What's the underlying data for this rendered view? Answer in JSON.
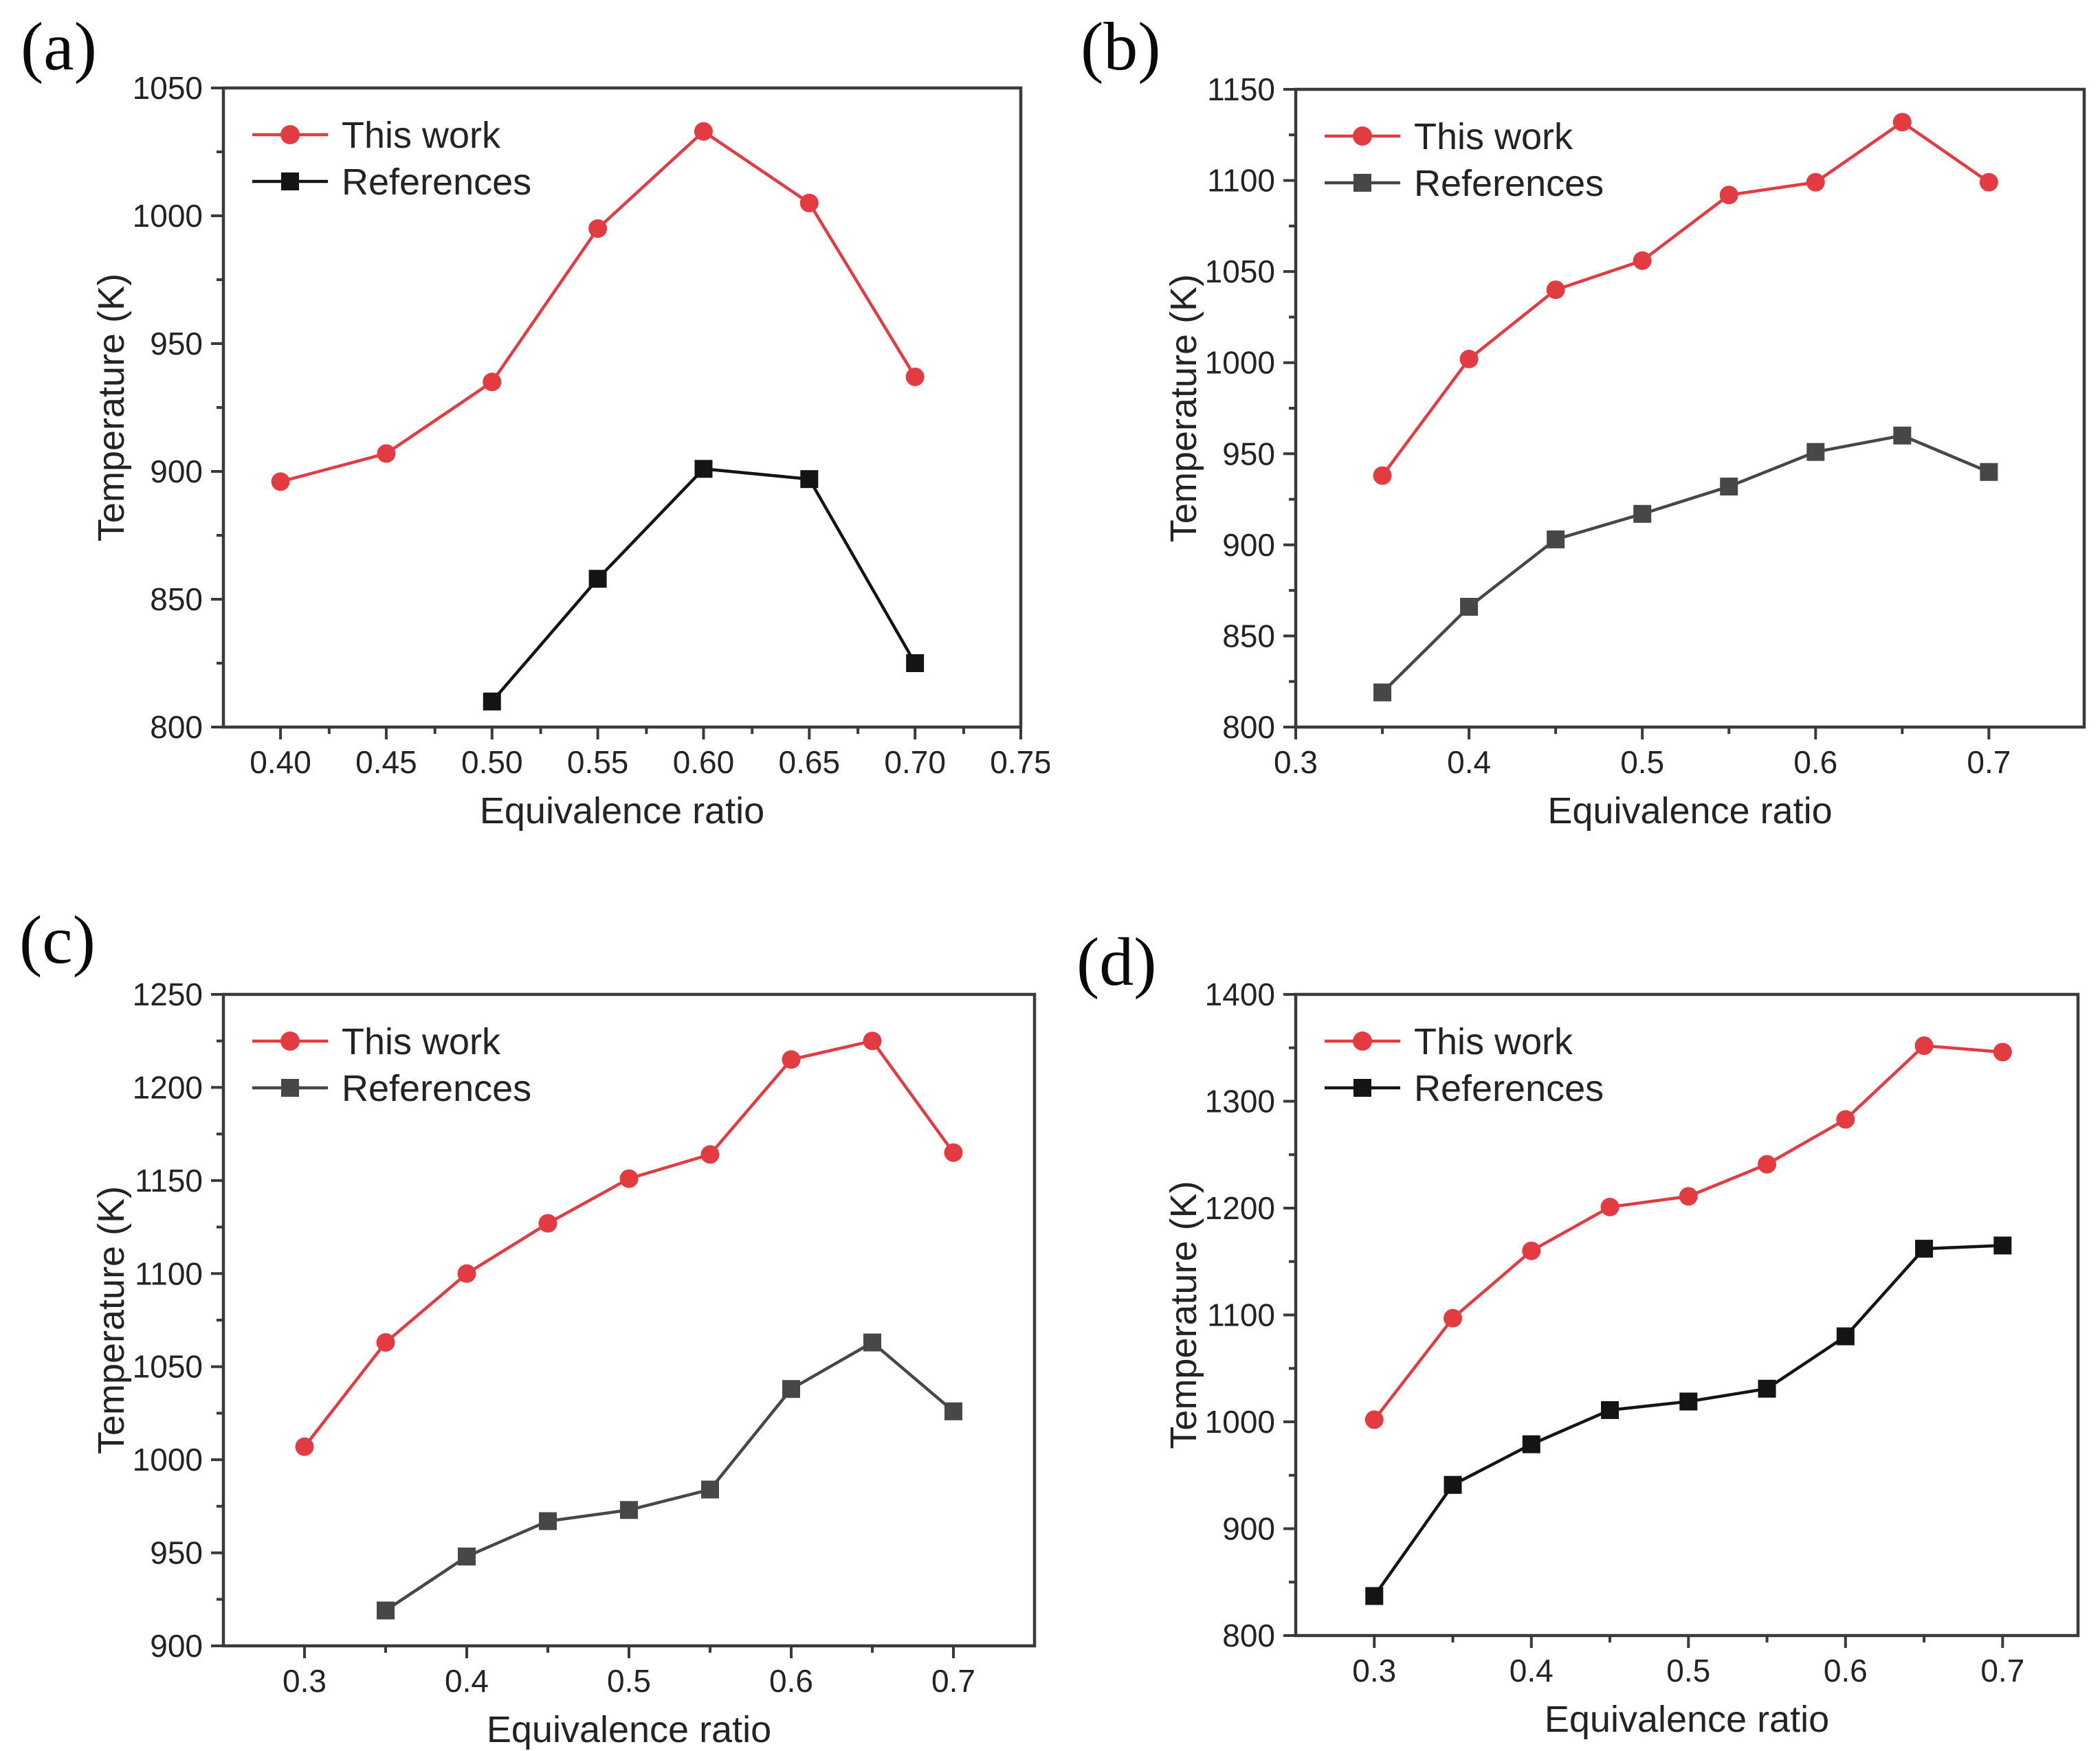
{
  "figure": {
    "background": "#ffffff",
    "text_color": "#232323",
    "axis_color": "#3a3a3a",
    "accent_red": "#e23b41",
    "series_black": "#141414",
    "series_gray": "#474747"
  },
  "chart_data": [
    {
      "panel_label": "(a)",
      "type": "line",
      "title": "",
      "xlabel": "Equivalence ratio",
      "ylabel": "Temperature (K)",
      "xlim": [
        0.373,
        0.75
      ],
      "ylim": [
        800,
        1050
      ],
      "x_ticks": {
        "values": [
          0.4,
          0.45,
          0.5,
          0.55,
          0.6,
          0.65,
          0.7,
          0.75
        ],
        "labels": [
          "0.40",
          "0.45",
          "0.50",
          "0.55",
          "0.60",
          "0.65",
          "0.70",
          "0.75"
        ]
      },
      "y_ticks": {
        "values": [
          800,
          850,
          900,
          950,
          1000,
          1050
        ],
        "labels": [
          "800",
          "850",
          "900",
          "950",
          "1000",
          "1050"
        ]
      },
      "x_minor_step": 0.025,
      "y_minor_step": 25,
      "grid": false,
      "legend_position": "top-left",
      "series": [
        {
          "name": "This work",
          "marker": "circle",
          "color": "#e23b41",
          "x": [
            0.4,
            0.45,
            0.5,
            0.55,
            0.6,
            0.65,
            0.7
          ],
          "y": [
            896,
            907,
            935,
            995,
            1033,
            1005,
            937
          ]
        },
        {
          "name": "References",
          "marker": "square",
          "color": "#141414",
          "x": [
            0.5,
            0.55,
            0.6,
            0.65,
            0.7
          ],
          "y": [
            810,
            858,
            901,
            897,
            825
          ]
        }
      ]
    },
    {
      "panel_label": "(b)",
      "type": "line",
      "title": "",
      "xlabel": "Equivalence ratio",
      "ylabel": "Temperature (K)",
      "xlim": [
        0.3,
        0.755
      ],
      "ylim": [
        800,
        1150
      ],
      "x_ticks": {
        "values": [
          0.3,
          0.4,
          0.5,
          0.6,
          0.7
        ],
        "labels": [
          "0.3",
          "0.4",
          "0.5",
          "0.6",
          "0.7"
        ]
      },
      "y_ticks": {
        "values": [
          800,
          850,
          900,
          950,
          1000,
          1050,
          1100,
          1150
        ],
        "labels": [
          "800",
          "850",
          "900",
          "950",
          "1000",
          "1050",
          "1100",
          "1150"
        ]
      },
      "x_minor_step": 0.05,
      "y_minor_step": 25,
      "grid": false,
      "legend_position": "top-left",
      "series": [
        {
          "name": "This work",
          "marker": "circle",
          "color": "#e23b41",
          "x": [
            0.35,
            0.4,
            0.45,
            0.5,
            0.55,
            0.6,
            0.65,
            0.7
          ],
          "y": [
            938,
            1002,
            1040,
            1056,
            1092,
            1099,
            1132,
            1099
          ]
        },
        {
          "name": "References",
          "marker": "square",
          "color": "#474747",
          "x": [
            0.35,
            0.4,
            0.45,
            0.5,
            0.55,
            0.6,
            0.65,
            0.7
          ],
          "y": [
            819,
            866,
            903,
            917,
            932,
            951,
            960,
            940
          ]
        }
      ]
    },
    {
      "panel_label": "(c)",
      "type": "line",
      "title": "",
      "xlabel": "Equivalence ratio",
      "ylabel": "Temperature (K)",
      "xlim": [
        0.25,
        0.75
      ],
      "ylim": [
        900,
        1250
      ],
      "x_ticks": {
        "values": [
          0.3,
          0.4,
          0.5,
          0.6,
          0.7
        ],
        "labels": [
          "0.3",
          "0.4",
          "0.5",
          "0.6",
          "0.7"
        ]
      },
      "y_ticks": {
        "values": [
          900,
          950,
          1000,
          1050,
          1100,
          1150,
          1200,
          1250
        ],
        "labels": [
          "900",
          "950",
          "1000",
          "1050",
          "1100",
          "1150",
          "1200",
          "1250"
        ]
      },
      "x_minor_step": 0.05,
      "y_minor_step": 25,
      "grid": false,
      "legend_position": "top-left",
      "series": [
        {
          "name": "This work",
          "marker": "circle",
          "color": "#e23b41",
          "x": [
            0.3,
            0.35,
            0.4,
            0.45,
            0.5,
            0.55,
            0.6,
            0.65,
            0.7
          ],
          "y": [
            1007,
            1063,
            1100,
            1127,
            1151,
            1164,
            1215,
            1225,
            1165
          ]
        },
        {
          "name": "References",
          "marker": "square",
          "color": "#474747",
          "x": [
            0.35,
            0.4,
            0.45,
            0.5,
            0.55,
            0.6,
            0.65,
            0.7
          ],
          "y": [
            919,
            948,
            967,
            973,
            984,
            1038,
            1063,
            1026
          ]
        }
      ]
    },
    {
      "panel_label": "(d)",
      "type": "line",
      "title": "",
      "xlabel": "Equivalence ratio",
      "ylabel": "Temperature (K)",
      "xlim": [
        0.25,
        0.748
      ],
      "ylim": [
        800,
        1400
      ],
      "x_ticks": {
        "values": [
          0.3,
          0.4,
          0.5,
          0.6,
          0.7
        ],
        "labels": [
          "0.3",
          "0.4",
          "0.5",
          "0.6",
          "0.7"
        ]
      },
      "y_ticks": {
        "values": [
          800,
          900,
          1000,
          1100,
          1200,
          1300,
          1400
        ],
        "labels": [
          "800",
          "900",
          "1000",
          "1100",
          "1200",
          "1300",
          "1400"
        ]
      },
      "x_minor_step": 0.05,
      "y_minor_step": 50,
      "grid": false,
      "legend_position": "top-left",
      "series": [
        {
          "name": "This work",
          "marker": "circle",
          "color": "#e23b41",
          "x": [
            0.3,
            0.35,
            0.4,
            0.45,
            0.5,
            0.55,
            0.6,
            0.65,
            0.7
          ],
          "y": [
            1002,
            1097,
            1160,
            1201,
            1211,
            1241,
            1283,
            1352,
            1346
          ]
        },
        {
          "name": "References",
          "marker": "square",
          "color": "#141414",
          "x": [
            0.3,
            0.35,
            0.4,
            0.45,
            0.5,
            0.55,
            0.6,
            0.65,
            0.7
          ],
          "y": [
            837,
            941,
            979,
            1011,
            1019,
            1031,
            1080,
            1162,
            1165
          ]
        }
      ]
    }
  ]
}
